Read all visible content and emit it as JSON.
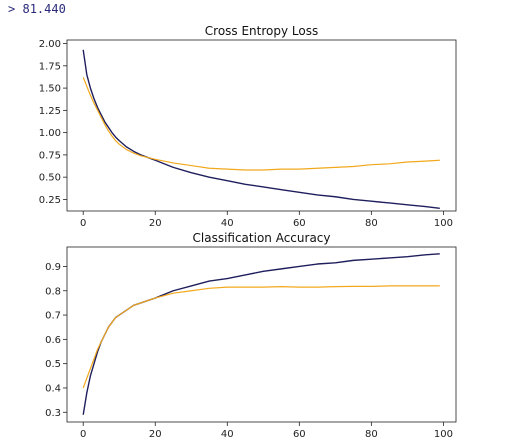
{
  "output": {
    "prompt_symbol": ">",
    "value": "81.440"
  },
  "chart_data": [
    {
      "type": "line",
      "title": "Cross Entropy Loss",
      "xlabel": "",
      "ylabel": "",
      "xlim": [
        -4.5,
        103.5
      ],
      "ylim": [
        0.12,
        2.04
      ],
      "x_ticks": [
        0,
        20,
        40,
        60,
        80,
        100
      ],
      "y_ticks": [
        0.25,
        0.5,
        0.75,
        1.0,
        1.25,
        1.5,
        1.75,
        2.0
      ],
      "y_tick_labels": [
        "0.25",
        "0.50",
        "0.75",
        "1.00",
        "1.25",
        "1.50",
        "1.75",
        "2.00"
      ],
      "grid": false,
      "x": [
        0,
        1,
        2,
        3,
        4,
        5,
        6,
        7,
        8,
        9,
        10,
        12,
        14,
        16,
        18,
        20,
        25,
        30,
        35,
        40,
        45,
        50,
        55,
        60,
        65,
        70,
        75,
        80,
        85,
        90,
        95,
        99
      ],
      "series": [
        {
          "color": "#1f1f5e",
          "values": [
            1.93,
            1.65,
            1.5,
            1.38,
            1.28,
            1.2,
            1.12,
            1.06,
            1.0,
            0.95,
            0.91,
            0.84,
            0.79,
            0.75,
            0.72,
            0.69,
            0.61,
            0.55,
            0.5,
            0.46,
            0.42,
            0.39,
            0.36,
            0.33,
            0.3,
            0.28,
            0.25,
            0.23,
            0.21,
            0.19,
            0.17,
            0.15
          ]
        },
        {
          "color": "#f2a81d",
          "values": [
            1.62,
            1.52,
            1.42,
            1.33,
            1.25,
            1.17,
            1.09,
            1.02,
            0.96,
            0.91,
            0.87,
            0.81,
            0.77,
            0.74,
            0.72,
            0.7,
            0.66,
            0.63,
            0.6,
            0.59,
            0.58,
            0.58,
            0.59,
            0.59,
            0.6,
            0.61,
            0.62,
            0.64,
            0.65,
            0.67,
            0.68,
            0.69
          ]
        }
      ]
    },
    {
      "type": "line",
      "title": "Classification Accuracy",
      "xlabel": "",
      "ylabel": "",
      "xlim": [
        -4.5,
        103.5
      ],
      "ylim": [
        0.26,
        0.98
      ],
      "x_ticks": [
        0,
        20,
        40,
        60,
        80,
        100
      ],
      "y_ticks": [
        0.3,
        0.4,
        0.5,
        0.6,
        0.7,
        0.8,
        0.9
      ],
      "y_tick_labels": [
        "0.3",
        "0.4",
        "0.5",
        "0.6",
        "0.7",
        "0.8",
        "0.9"
      ],
      "grid": false,
      "x": [
        0,
        1,
        2,
        3,
        4,
        5,
        6,
        7,
        8,
        9,
        10,
        12,
        14,
        16,
        18,
        20,
        25,
        30,
        35,
        40,
        45,
        50,
        55,
        60,
        65,
        70,
        75,
        80,
        85,
        90,
        95,
        99
      ],
      "series": [
        {
          "color": "#1f1f5e",
          "values": [
            0.29,
            0.38,
            0.45,
            0.5,
            0.55,
            0.59,
            0.62,
            0.65,
            0.67,
            0.69,
            0.7,
            0.72,
            0.74,
            0.75,
            0.76,
            0.77,
            0.8,
            0.82,
            0.84,
            0.85,
            0.865,
            0.88,
            0.89,
            0.9,
            0.91,
            0.915,
            0.925,
            0.93,
            0.935,
            0.94,
            0.948,
            0.952
          ]
        },
        {
          "color": "#f2a81d",
          "values": [
            0.4,
            0.44,
            0.48,
            0.52,
            0.56,
            0.59,
            0.62,
            0.65,
            0.67,
            0.69,
            0.7,
            0.72,
            0.74,
            0.75,
            0.76,
            0.77,
            0.79,
            0.8,
            0.81,
            0.815,
            0.815,
            0.815,
            0.817,
            0.815,
            0.815,
            0.817,
            0.818,
            0.818,
            0.82,
            0.82,
            0.82,
            0.82
          ]
        }
      ]
    }
  ]
}
